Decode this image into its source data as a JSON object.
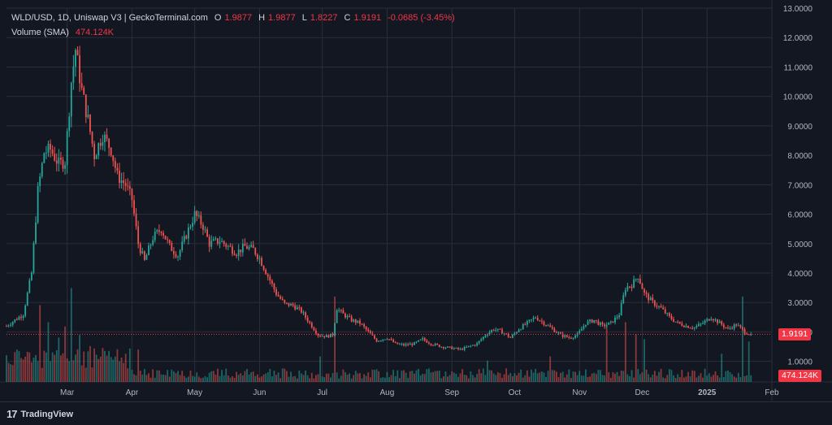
{
  "header": {
    "symbol": "WLD/USD, 1D, Uniswap V3 | GeckoTerminal.com",
    "open_label": "O",
    "open": "1.9877",
    "high_label": "H",
    "high": "1.9877",
    "low_label": "L",
    "low": "1.8227",
    "close_label": "C",
    "close": "1.9191",
    "change": "-0.0685 (-3.45%)",
    "volume_label": "Volume (SMA)",
    "volume": "474.124K"
  },
  "branding": {
    "name": "TradingView",
    "logo_icon": "tradingview-logo-icon"
  },
  "colors": {
    "up": "#26a69a",
    "down": "#ef5350",
    "background": "#131722",
    "grid": "#2a2e39",
    "price_line": "#f23645"
  },
  "chart_data": {
    "type": "candlestick",
    "title": "WLD/USD, 1D, Uniswap V3 | GeckoTerminal.com",
    "y_axis": {
      "ticks": [
        1,
        2,
        3,
        4,
        5,
        6,
        7,
        8,
        9,
        10,
        11,
        12,
        13
      ],
      "tick_labels": [
        "1.0000",
        "2.0000",
        "3.0000",
        "4.0000",
        "5.0000",
        "6.0000",
        "7.0000",
        "8.0000",
        "9.0000",
        "10.0000",
        "11.0000",
        "12.0000",
        "13.0000"
      ],
      "range": [
        0.3,
        13.0
      ]
    },
    "x_axis": {
      "tick_labels": [
        "Mar",
        "Apr",
        "May",
        "Jun",
        "Jul",
        "Aug",
        "Sep",
        "Oct",
        "Nov",
        "Dec",
        "2025",
        "Feb"
      ],
      "tick_days": [
        29,
        60,
        90,
        121,
        151,
        182,
        213,
        243,
        274,
        304,
        335,
        366
      ],
      "range_days": [
        0,
        366
      ]
    },
    "last_price": 1.9191,
    "last_price_label": "1.9191",
    "last_volume_label": "474.124K",
    "grid": true,
    "price_points": [
      {
        "day": 0,
        "price": 2.2
      },
      {
        "day": 8,
        "price": 2.6
      },
      {
        "day": 12,
        "price": 4.0
      },
      {
        "day": 15,
        "price": 6.8
      },
      {
        "day": 18,
        "price": 8.1
      },
      {
        "day": 21,
        "price": 8.2
      },
      {
        "day": 25,
        "price": 7.7
      },
      {
        "day": 28,
        "price": 7.8
      },
      {
        "day": 31,
        "price": 10.5
      },
      {
        "day": 33,
        "price": 11.6
      },
      {
        "day": 36,
        "price": 10.2
      },
      {
        "day": 39,
        "price": 9.2
      },
      {
        "day": 42,
        "price": 8.0
      },
      {
        "day": 46,
        "price": 8.7
      },
      {
        "day": 50,
        "price": 8.2
      },
      {
        "day": 53,
        "price": 7.3
      },
      {
        "day": 57,
        "price": 7.0
      },
      {
        "day": 60,
        "price": 6.5
      },
      {
        "day": 63,
        "price": 5.0
      },
      {
        "day": 66,
        "price": 4.4
      },
      {
        "day": 70,
        "price": 5.2
      },
      {
        "day": 74,
        "price": 5.5
      },
      {
        "day": 78,
        "price": 4.9
      },
      {
        "day": 82,
        "price": 4.6
      },
      {
        "day": 86,
        "price": 5.3
      },
      {
        "day": 90,
        "price": 6.0
      },
      {
        "day": 94,
        "price": 5.6
      },
      {
        "day": 97,
        "price": 5.0
      },
      {
        "day": 102,
        "price": 5.1
      },
      {
        "day": 106,
        "price": 4.9
      },
      {
        "day": 110,
        "price": 4.7
      },
      {
        "day": 114,
        "price": 4.9
      },
      {
        "day": 118,
        "price": 4.8
      },
      {
        "day": 121,
        "price": 4.5
      },
      {
        "day": 125,
        "price": 3.9
      },
      {
        "day": 129,
        "price": 3.3
      },
      {
        "day": 133,
        "price": 2.95
      },
      {
        "day": 137,
        "price": 2.9
      },
      {
        "day": 141,
        "price": 2.7
      },
      {
        "day": 145,
        "price": 2.3
      },
      {
        "day": 149,
        "price": 1.9
      },
      {
        "day": 153,
        "price": 1.85
      },
      {
        "day": 156,
        "price": 1.9
      },
      {
        "day": 158,
        "price": 2.8
      },
      {
        "day": 161,
        "price": 2.6
      },
      {
        "day": 165,
        "price": 2.4
      },
      {
        "day": 169,
        "price": 2.3
      },
      {
        "day": 173,
        "price": 2.0
      },
      {
        "day": 177,
        "price": 1.7
      },
      {
        "day": 182,
        "price": 1.8
      },
      {
        "day": 186,
        "price": 1.6
      },
      {
        "day": 190,
        "price": 1.55
      },
      {
        "day": 195,
        "price": 1.6
      },
      {
        "day": 199,
        "price": 1.75
      },
      {
        "day": 203,
        "price": 1.6
      },
      {
        "day": 208,
        "price": 1.5
      },
      {
        "day": 213,
        "price": 1.45
      },
      {
        "day": 217,
        "price": 1.4
      },
      {
        "day": 221,
        "price": 1.5
      },
      {
        "day": 225,
        "price": 1.6
      },
      {
        "day": 229,
        "price": 1.9
      },
      {
        "day": 233,
        "price": 2.1
      },
      {
        "day": 237,
        "price": 2.0
      },
      {
        "day": 241,
        "price": 1.8
      },
      {
        "day": 245,
        "price": 2.1
      },
      {
        "day": 249,
        "price": 2.3
      },
      {
        "day": 253,
        "price": 2.5
      },
      {
        "day": 257,
        "price": 2.3
      },
      {
        "day": 261,
        "price": 2.1
      },
      {
        "day": 265,
        "price": 1.9
      },
      {
        "day": 269,
        "price": 1.8
      },
      {
        "day": 273,
        "price": 1.9
      },
      {
        "day": 277,
        "price": 2.3
      },
      {
        "day": 281,
        "price": 2.4
      },
      {
        "day": 285,
        "price": 2.2
      },
      {
        "day": 289,
        "price": 2.3
      },
      {
        "day": 293,
        "price": 2.6
      },
      {
        "day": 296,
        "price": 3.5
      },
      {
        "day": 299,
        "price": 3.6
      },
      {
        "day": 302,
        "price": 3.9
      },
      {
        "day": 305,
        "price": 3.3
      },
      {
        "day": 309,
        "price": 3.0
      },
      {
        "day": 313,
        "price": 2.8
      },
      {
        "day": 317,
        "price": 2.5
      },
      {
        "day": 321,
        "price": 2.3
      },
      {
        "day": 325,
        "price": 2.2
      },
      {
        "day": 329,
        "price": 2.15
      },
      {
        "day": 333,
        "price": 2.3
      },
      {
        "day": 337,
        "price": 2.5
      },
      {
        "day": 341,
        "price": 2.3
      },
      {
        "day": 345,
        "price": 2.1
      },
      {
        "day": 349,
        "price": 2.25
      },
      {
        "day": 353,
        "price": 2.0
      },
      {
        "day": 356,
        "price": 1.92
      }
    ],
    "volume_spikes_k": [
      {
        "day": 5,
        "vol": 380
      },
      {
        "day": 16,
        "vol": 900
      },
      {
        "day": 20,
        "vol": 700
      },
      {
        "day": 25,
        "vol": 520
      },
      {
        "day": 28,
        "vol": 650
      },
      {
        "day": 31,
        "vol": 1100
      },
      {
        "day": 35,
        "vol": 550
      },
      {
        "day": 40,
        "vol": 420
      },
      {
        "day": 63,
        "vol": 380
      },
      {
        "day": 150,
        "vol": 300
      },
      {
        "day": 157,
        "vol": 1000
      },
      {
        "day": 230,
        "vol": 250
      },
      {
        "day": 260,
        "vol": 300
      },
      {
        "day": 287,
        "vol": 650
      },
      {
        "day": 296,
        "vol": 700
      },
      {
        "day": 301,
        "vol": 560
      },
      {
        "day": 305,
        "vol": 500
      },
      {
        "day": 342,
        "vol": 330
      },
      {
        "day": 352,
        "vol": 1000
      },
      {
        "day": 355,
        "vol": 474
      }
    ]
  }
}
